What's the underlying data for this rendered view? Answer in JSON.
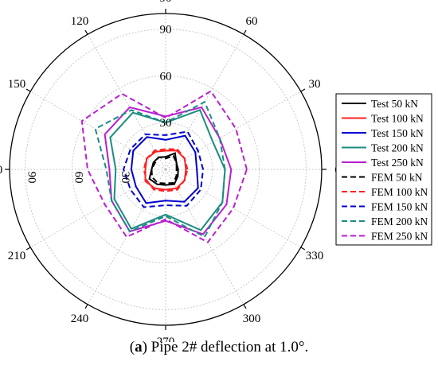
{
  "chart_data": {
    "type": "polar-line",
    "angle_unit": "degrees",
    "angular_ticks": [
      0,
      30,
      60,
      90,
      120,
      150,
      180,
      210,
      240,
      270,
      300,
      330
    ],
    "angular_tick_labels": [
      "0",
      "30",
      "60",
      "90",
      "120",
      "150",
      "180",
      "210",
      "240",
      "270",
      "300",
      "330"
    ],
    "radial_range": [
      0,
      100
    ],
    "radial_ticks": [
      30,
      60,
      90
    ],
    "radial_tick_labels": [
      "30",
      "60",
      "90"
    ],
    "grid": true,
    "legend_position": "right",
    "angles": [
      0,
      30,
      60,
      90,
      120,
      150,
      180,
      210,
      240,
      270,
      300,
      330
    ],
    "series": [
      {
        "name": "Test 50 kN",
        "color": "#000000",
        "dash": false,
        "values": [
          8,
          8,
          12,
          8,
          9,
          9,
          9,
          12,
          11,
          10,
          11,
          9
        ]
      },
      {
        "name": "Test 100 kN",
        "color": "#ff2020",
        "dash": false,
        "values": [
          13,
          14,
          14,
          12,
          13,
          14,
          13,
          15,
          14,
          13,
          14,
          14
        ]
      },
      {
        "name": "Test 150 kN",
        "color": "#0000cc",
        "dash": false,
        "values": [
          20,
          22,
          25,
          19,
          24,
          24,
          22,
          22,
          25,
          20,
          24,
          24
        ]
      },
      {
        "name": "Test 200 kN",
        "color": "#1c8c80",
        "dash": false,
        "values": [
          38,
          35,
          44,
          30,
          42,
          41,
          32,
          38,
          44,
          29,
          45,
          42
        ]
      },
      {
        "name": "Test 250 kN",
        "color": "#b81fd0",
        "dash": false,
        "values": [
          42,
          40,
          46,
          34,
          46,
          45,
          36,
          40,
          46,
          33,
          48,
          45
        ]
      },
      {
        "name": "FEM 50 kN",
        "color": "#000000",
        "dash": true,
        "values": [
          7,
          8,
          10,
          7,
          9,
          8,
          9,
          10,
          10,
          9,
          10,
          8
        ]
      },
      {
        "name": "FEM 100 kN",
        "color": "#ff2020",
        "dash": true,
        "values": [
          14,
          14,
          15,
          13,
          14,
          14,
          14,
          14,
          15,
          14,
          15,
          14
        ]
      },
      {
        "name": "FEM 150 kN",
        "color": "#0000cc",
        "dash": true,
        "values": [
          24,
          24,
          28,
          22,
          26,
          26,
          27,
          26,
          28,
          23,
          27,
          26
        ]
      },
      {
        "name": "FEM 200 kN",
        "color": "#1c8c80",
        "dash": true,
        "values": [
          38,
          40,
          50,
          30,
          44,
          52,
          38,
          40,
          46,
          30,
          50,
          42
        ]
      },
      {
        "name": "FEM 250 kN",
        "color": "#b81fd0",
        "dash": true,
        "values": [
          52,
          52,
          58,
          33,
          56,
          62,
          50,
          45,
          50,
          32,
          54,
          50
        ]
      }
    ]
  },
  "caption": {
    "label": "a",
    "text": " Pipe 2# deflection at 1.0°."
  }
}
